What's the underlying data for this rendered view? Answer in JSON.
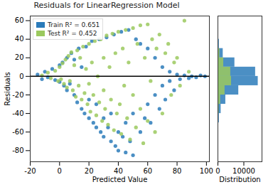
{
  "chart_data": [
    {
      "type": "scatter",
      "title": "Residuals for LinearRegression Model",
      "x_label": "Predicted Value",
      "y_label": "Residuals",
      "xlim": [
        -20,
        102
      ],
      "ylim": [
        -92,
        65
      ],
      "xticks": [
        -20,
        0,
        20,
        40,
        60,
        80,
        100
      ],
      "yticks": [
        -80,
        -60,
        -40,
        -20,
        0,
        20,
        40,
        60
      ],
      "grid": false,
      "legend": "upper left",
      "hline": 0,
      "series": [
        {
          "name": "Train R² = 0.651",
          "color": "#2b7bba",
          "x": [
            -15,
            -12,
            -10,
            -8,
            -5,
            -3,
            0,
            0,
            2,
            3,
            5,
            5,
            7,
            8,
            10,
            10,
            12,
            13,
            15,
            15,
            17,
            18,
            20,
            20,
            22,
            23,
            25,
            25,
            27,
            28,
            30,
            30,
            32,
            33,
            35,
            35,
            37,
            38,
            40,
            40,
            42,
            43,
            45,
            45,
            47,
            48,
            50,
            50,
            52,
            55,
            55,
            58,
            60,
            60,
            62,
            65,
            65,
            68,
            70,
            70,
            72,
            75,
            75,
            78,
            80,
            82,
            85,
            88,
            90,
            93,
            96,
            99
          ],
          "values": [
            2,
            -3,
            5,
            -1,
            8,
            -4,
            12,
            -6,
            15,
            -10,
            20,
            -15,
            -8,
            25,
            -20,
            18,
            -28,
            30,
            -35,
            10,
            -40,
            32,
            -45,
            -25,
            38,
            -50,
            -55,
            -30,
            40,
            -60,
            -45,
            -65,
            42,
            -55,
            -70,
            -40,
            45,
            -75,
            -60,
            -80,
            48,
            -65,
            -82,
            -50,
            50,
            -70,
            -85,
            -40,
            40,
            -60,
            35,
            -45,
            30,
            -30,
            -50,
            20,
            -20,
            -35,
            10,
            -10,
            -25,
            5,
            -5,
            -15,
            2,
            -3,
            1,
            -2,
            0,
            -1,
            1,
            0
          ]
        },
        {
          "name": "Test R² = 0.452",
          "color": "#9bc95e",
          "x": [
            -12,
            -8,
            -6,
            -3,
            -1,
            0,
            1,
            2,
            3,
            4,
            5,
            6,
            7,
            8,
            9,
            10,
            11,
            12,
            13,
            14,
            15,
            16,
            17,
            18,
            19,
            20,
            20,
            21,
            22,
            23,
            24,
            25,
            26,
            27,
            28,
            29,
            30,
            30,
            31,
            32,
            33,
            34,
            35,
            36,
            37,
            38,
            39,
            40,
            41,
            42,
            43,
            44,
            45,
            46,
            47,
            48,
            50,
            50,
            52,
            53,
            55,
            55,
            57,
            58,
            60,
            60,
            62,
            63,
            65,
            66,
            68,
            70,
            72,
            74,
            76,
            78,
            80,
            82,
            85,
            88
          ],
          "values": [
            1,
            4,
            -2,
            6,
            -5,
            10,
            -3,
            14,
            -8,
            18,
            -12,
            22,
            -5,
            26,
            -15,
            12,
            -22,
            28,
            -10,
            20,
            -25,
            32,
            -18,
            8,
            -30,
            35,
            -8,
            -38,
            15,
            -20,
            38,
            -42,
            0,
            -28,
            40,
            -48,
            20,
            -15,
            -35,
            44,
            -52,
            10,
            -25,
            46,
            -58,
            25,
            -40,
            48,
            -30,
            -62,
            30,
            -10,
            50,
            -45,
            15,
            -68,
            52,
            -20,
            -55,
            35,
            55,
            -35,
            -72,
            20,
            56,
            -48,
            -5,
            40,
            -60,
            30,
            45,
            -40,
            25,
            35,
            -20,
            15,
            20,
            -10,
            60,
            5
          ]
        }
      ]
    },
    {
      "type": "histogram",
      "x_label": "Distribution",
      "orientation": "horizontal",
      "tick_labels": "x",
      "xlim": [
        0,
        17000
      ],
      "xticks": [
        0,
        10000
      ],
      "ylim": [
        -92,
        65
      ],
      "bins": [
        -90,
        -80,
        -70,
        -60,
        -50,
        -40,
        -30,
        -20,
        -10,
        0,
        10,
        20,
        30,
        40,
        50,
        60
      ],
      "series": [
        {
          "name": "Train R² = 0.651",
          "color": "#2b7bba",
          "counts": [
            20,
            50,
            120,
            250,
            500,
            1200,
            3000,
            8000,
            15500,
            14500,
            6500,
            2000,
            500,
            150,
            40
          ]
        },
        {
          "name": "Test R² = 0.452",
          "color": "#9bc95e",
          "counts": [
            5,
            15,
            40,
            80,
            170,
            400,
            1000,
            2700,
            5200,
            4900,
            2200,
            700,
            170,
            50,
            15
          ]
        }
      ]
    }
  ]
}
